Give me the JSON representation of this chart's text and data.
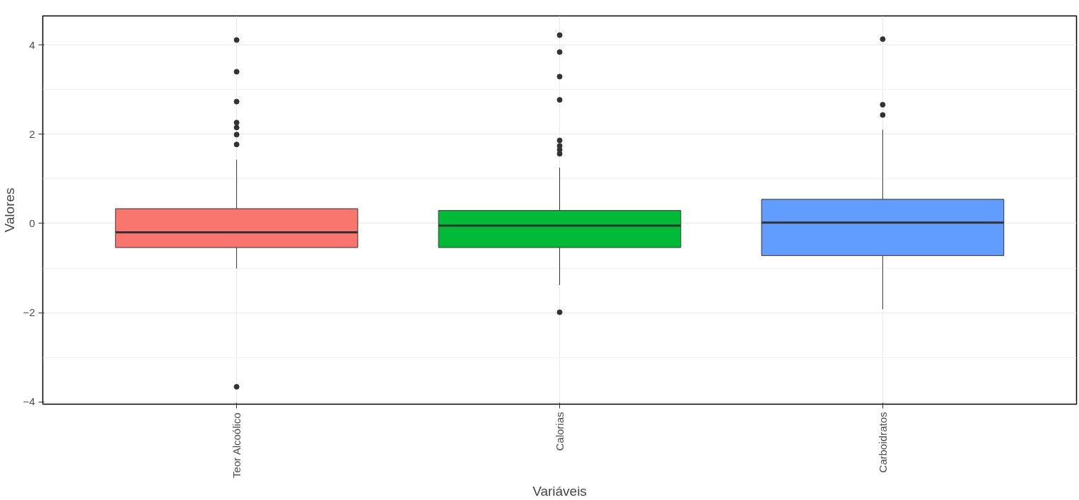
{
  "chart_data": {
    "type": "box",
    "xlabel": "Variáveis",
    "ylabel": "Valores",
    "categories": [
      "Teor Alcoólico",
      "Calorias",
      "Carboidratos"
    ],
    "colors": [
      "#f8766d",
      "#00ba38",
      "#619cff"
    ],
    "boxes": [
      {
        "low": -1.01,
        "q1": -0.54,
        "median": -0.2,
        "q3": 0.33,
        "high": 1.43,
        "outliers": [
          4.11,
          3.4,
          2.73,
          2.26,
          2.15,
          1.99,
          1.77,
          -3.66
        ]
      },
      {
        "low": -1.38,
        "q1": -0.54,
        "median": -0.05,
        "q3": 0.29,
        "high": 1.25,
        "outliers": [
          4.22,
          3.84,
          3.29,
          2.77,
          1.86,
          1.74,
          1.65,
          1.56,
          -1.99
        ]
      },
      {
        "low": -1.92,
        "q1": -0.72,
        "median": 0.02,
        "q3": 0.54,
        "high": 2.1,
        "outliers": [
          4.13,
          2.66,
          2.43
        ]
      }
    ],
    "ylim": [
      -4.05,
      4.65
    ],
    "yticks": [
      -4,
      -2,
      0,
      2,
      4
    ],
    "grid": true
  }
}
